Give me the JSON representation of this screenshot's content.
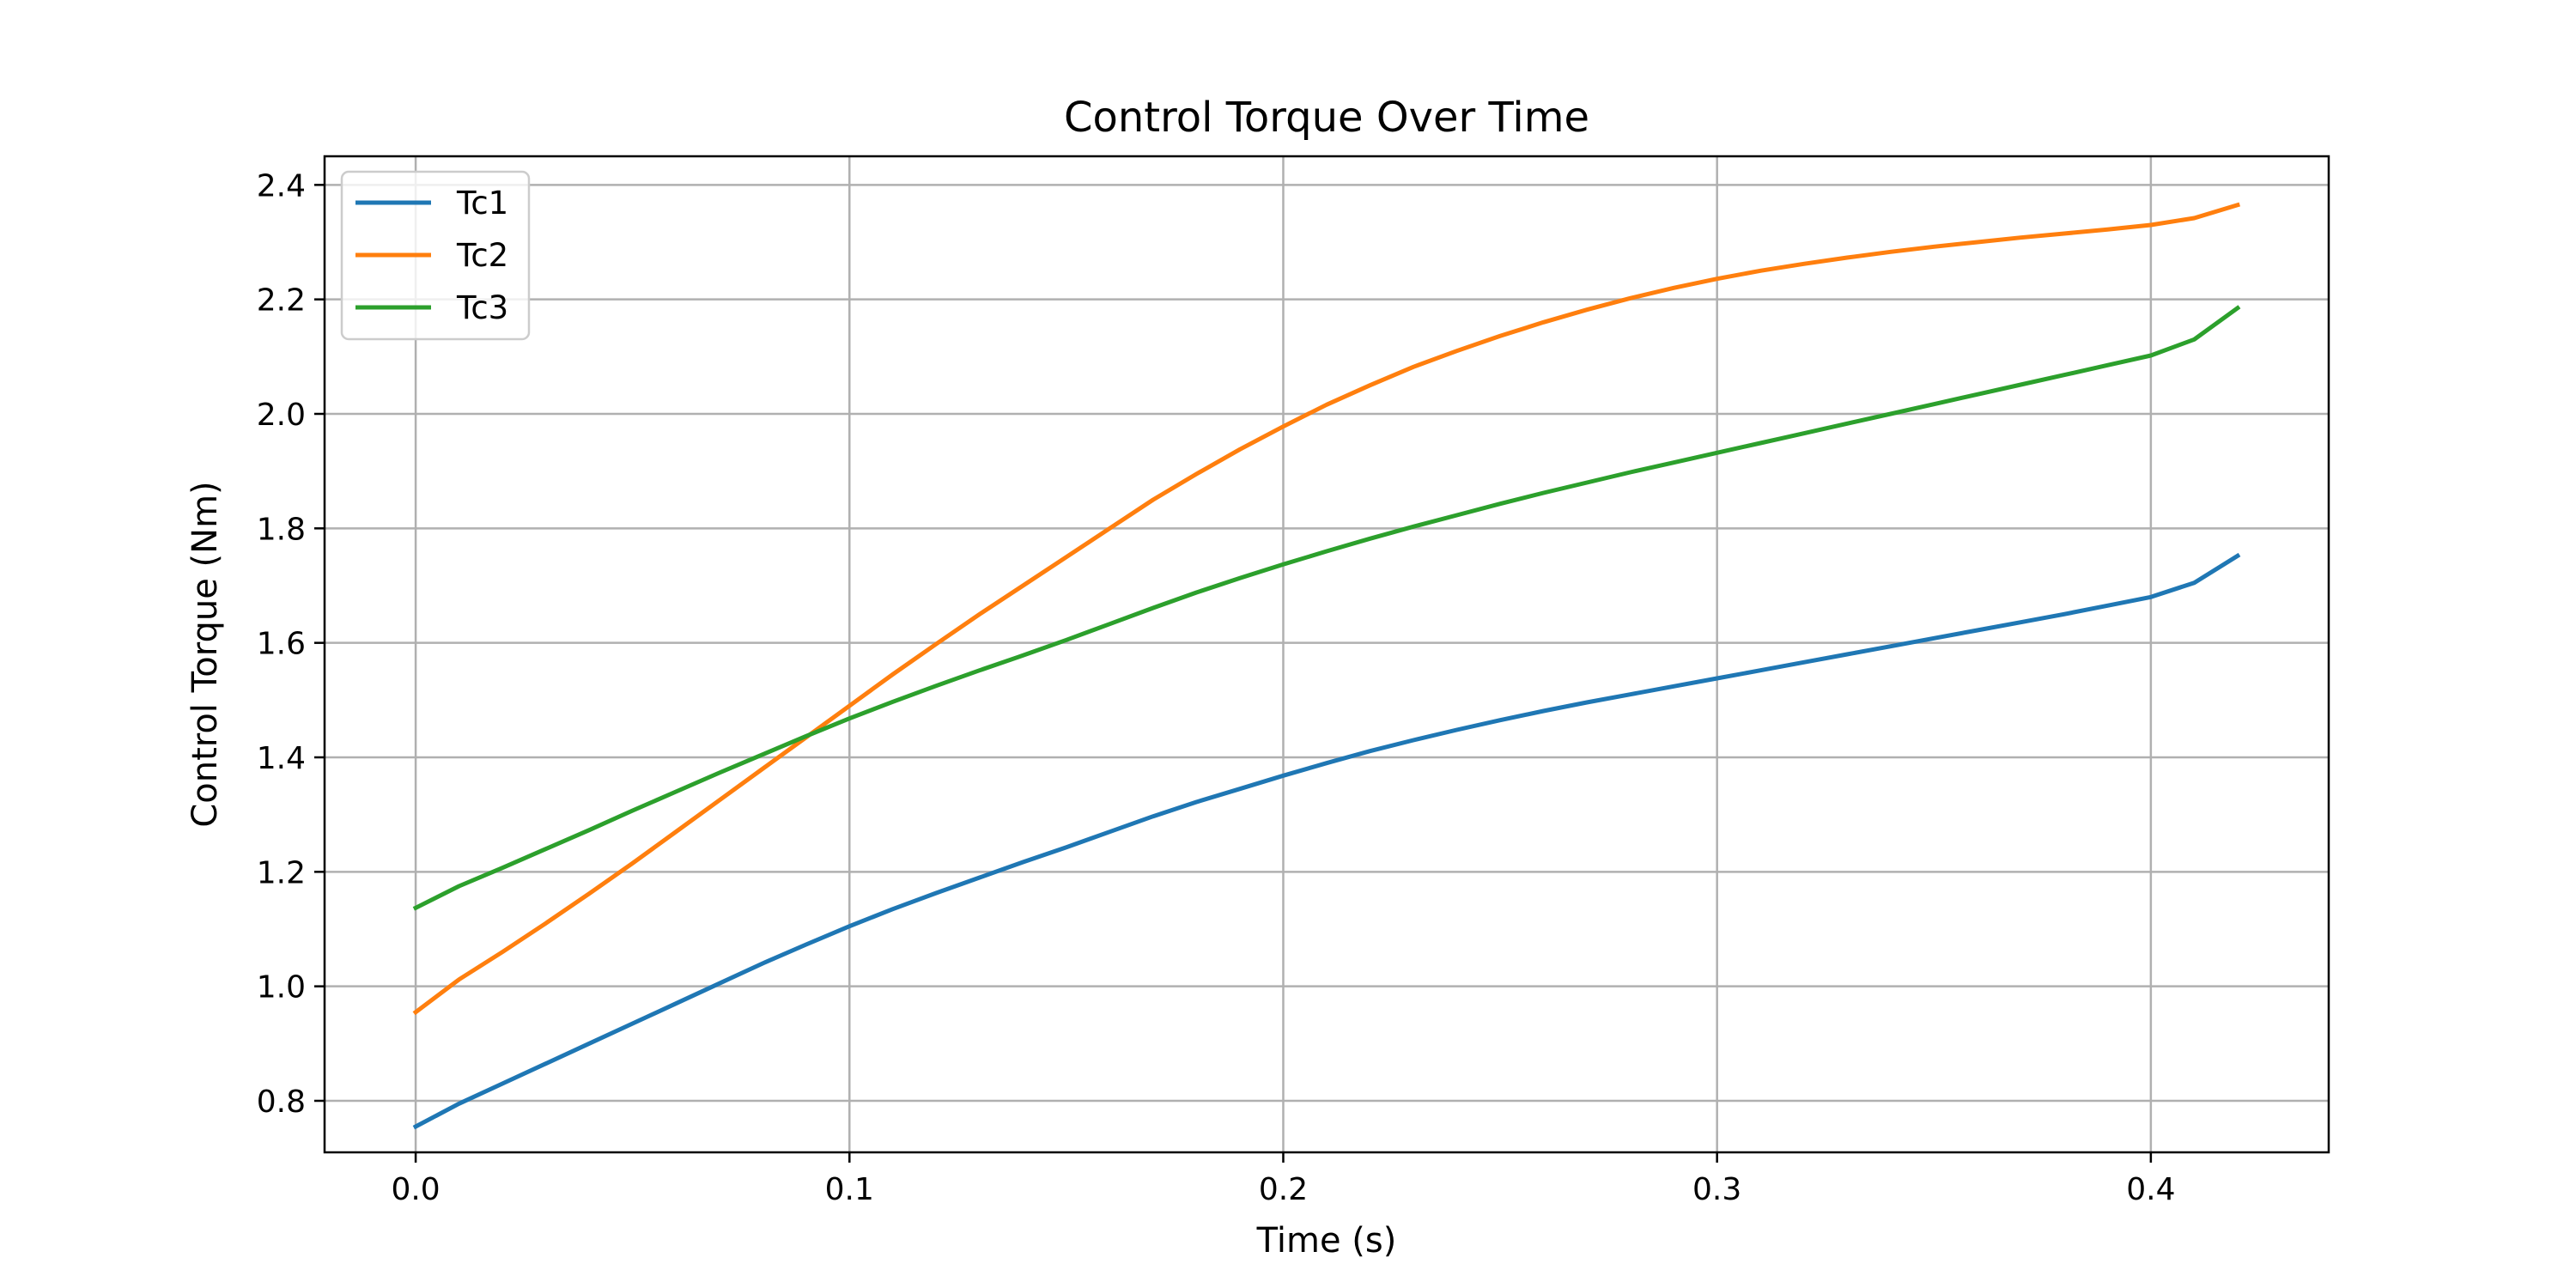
{
  "chart_data": {
    "type": "line",
    "title": "Control Torque Over Time",
    "xlabel": "Time (s)",
    "ylabel": "Control Torque (Nm)",
    "xlim": [
      -0.021,
      0.441
    ],
    "ylim": [
      0.71,
      2.45
    ],
    "xticks": [
      0.0,
      0.1,
      0.2,
      0.3,
      0.4
    ],
    "xtick_labels": [
      "0.0",
      "0.1",
      "0.2",
      "0.3",
      "0.4"
    ],
    "yticks": [
      0.8,
      1.0,
      1.2,
      1.4,
      1.6,
      1.8,
      2.0,
      2.2,
      2.4
    ],
    "ytick_labels": [
      "0.8",
      "1.0",
      "1.2",
      "1.4",
      "1.6",
      "1.8",
      "2.0",
      "2.2",
      "2.4"
    ],
    "grid": true,
    "legend_position": "top-left",
    "x": [
      0.0,
      0.01,
      0.02,
      0.03,
      0.04,
      0.05,
      0.06,
      0.07,
      0.08,
      0.09,
      0.1,
      0.11,
      0.12,
      0.13,
      0.14,
      0.15,
      0.16,
      0.17,
      0.18,
      0.19,
      0.2,
      0.21,
      0.22,
      0.23,
      0.24,
      0.25,
      0.26,
      0.27,
      0.28,
      0.29,
      0.3,
      0.31,
      0.32,
      0.33,
      0.34,
      0.35,
      0.36,
      0.37,
      0.38,
      0.39,
      0.4,
      0.41,
      0.42
    ],
    "series": [
      {
        "name": "Tc1",
        "color": "#1f77b4",
        "values": [
          0.755,
          0.795,
          0.83,
          0.865,
          0.9,
          0.935,
          0.97,
          1.005,
          1.04,
          1.073,
          1.105,
          1.135,
          1.163,
          1.19,
          1.217,
          1.243,
          1.27,
          1.297,
          1.322,
          1.345,
          1.368,
          1.39,
          1.411,
          1.43,
          1.448,
          1.465,
          1.481,
          1.496,
          1.51,
          1.524,
          1.538,
          1.552,
          1.566,
          1.58,
          1.594,
          1.608,
          1.622,
          1.636,
          1.65,
          1.665,
          1.68,
          1.705,
          1.752
        ]
      },
      {
        "name": "Tc2",
        "color": "#ff7f0e",
        "values": [
          0.955,
          1.012,
          1.06,
          1.11,
          1.162,
          1.215,
          1.27,
          1.325,
          1.38,
          1.435,
          1.49,
          1.545,
          1.598,
          1.65,
          1.7,
          1.75,
          1.8,
          1.85,
          1.895,
          1.938,
          1.978,
          2.016,
          2.05,
          2.082,
          2.11,
          2.136,
          2.16,
          2.182,
          2.202,
          2.22,
          2.236,
          2.25,
          2.262,
          2.273,
          2.283,
          2.292,
          2.3,
          2.308,
          2.315,
          2.322,
          2.33,
          2.342,
          2.365
        ]
      },
      {
        "name": "Tc3",
        "color": "#2ca02c",
        "values": [
          1.137,
          1.175,
          1.207,
          1.24,
          1.273,
          1.307,
          1.34,
          1.373,
          1.405,
          1.437,
          1.468,
          1.497,
          1.525,
          1.552,
          1.578,
          1.605,
          1.633,
          1.661,
          1.688,
          1.713,
          1.737,
          1.76,
          1.782,
          1.803,
          1.823,
          1.843,
          1.862,
          1.88,
          1.898,
          1.915,
          1.932,
          1.949,
          1.966,
          1.983,
          2.0,
          2.017,
          2.034,
          2.051,
          2.068,
          2.085,
          2.102,
          2.13,
          2.185
        ]
      }
    ]
  }
}
